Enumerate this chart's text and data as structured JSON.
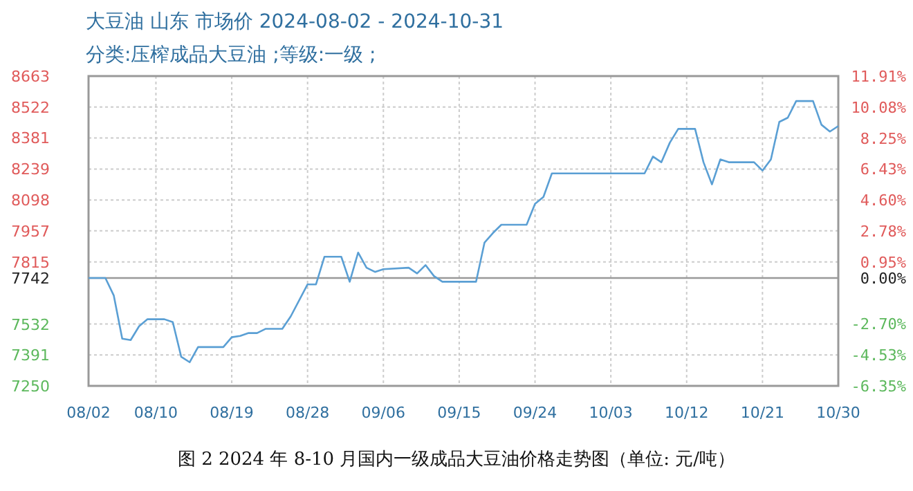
{
  "chart_data": {
    "type": "line",
    "title": "大豆油 山东 市场价 2024-08-02 - 2024-10-31",
    "subtitle": "分类:压榨成品大豆油 ;等级:一级 ;",
    "annotations": [
      "图 2  2024 年 8-10 月国内一级成品大豆油价格走势图（单位: 元/吨）"
    ],
    "x": [
      "2024-08-02",
      "2024-08-04",
      "2024-08-05",
      "2024-08-06",
      "2024-08-07",
      "2024-08-08",
      "2024-08-09",
      "2024-08-11",
      "2024-08-12",
      "2024-08-13",
      "2024-08-14",
      "2024-08-15",
      "2024-08-18",
      "2024-08-19",
      "2024-08-20",
      "2024-08-21",
      "2024-08-22",
      "2024-08-23",
      "2024-08-25",
      "2024-08-26",
      "2024-08-28",
      "2024-08-29",
      "2024-08-30",
      "2024-09-01",
      "2024-09-02",
      "2024-09-03",
      "2024-09-04",
      "2024-09-05",
      "2024-09-06",
      "2024-09-09",
      "2024-09-10",
      "2024-09-11",
      "2024-09-12",
      "2024-09-13",
      "2024-09-17",
      "2024-09-18",
      "2024-09-19",
      "2024-09-20",
      "2024-09-23",
      "2024-09-24",
      "2024-09-25",
      "2024-09-26",
      "2024-10-07",
      "2024-10-08",
      "2024-10-09",
      "2024-10-10",
      "2024-10-11",
      "2024-10-13",
      "2024-10-14",
      "2024-10-15",
      "2024-10-16",
      "2024-10-17",
      "2024-10-20",
      "2024-10-21",
      "2024-10-22",
      "2024-10-23",
      "2024-10-24",
      "2024-10-25",
      "2024-10-27",
      "2024-10-28",
      "2024-10-29",
      "2024-10-30"
    ],
    "series": [
      {
        "color": "#5a9fd4",
        "values": [
          7742,
          7742,
          7662,
          7465,
          7459,
          7522,
          7554,
          7554,
          7541,
          7383,
          7358,
          7427,
          7427,
          7472,
          7478,
          7491,
          7491,
          7510,
          7510,
          7567,
          7713,
          7713,
          7839,
          7839,
          7725,
          7858,
          7789,
          7770,
          7782,
          7789,
          7763,
          7801,
          7751,
          7725,
          7725,
          7903,
          7947,
          7985,
          7985,
          8080,
          8112,
          8219,
          8219,
          8296,
          8270,
          8359,
          8422,
          8422,
          8270,
          8169,
          8283,
          8270,
          8270,
          8232,
          8283,
          8454,
          8473,
          8549,
          8549,
          8441,
          8410,
          8435
        ]
      }
    ],
    "xlim": [
      "2024-08-02",
      "2024-10-30"
    ],
    "xticks": [
      {
        "value": "2024-08-02",
        "label": "08/02"
      },
      {
        "value": "2024-08-10",
        "label": "08/10"
      },
      {
        "value": "2024-08-19",
        "label": "08/19"
      },
      {
        "value": "2024-08-28",
        "label": "08/28"
      },
      {
        "value": "2024-09-06",
        "label": "09/06"
      },
      {
        "value": "2024-09-15",
        "label": "09/15"
      },
      {
        "value": "2024-09-24",
        "label": "09/24"
      },
      {
        "value": "2024-10-03",
        "label": "10/03"
      },
      {
        "value": "2024-10-12",
        "label": "10/12"
      },
      {
        "value": "2024-10-21",
        "label": "10/21"
      },
      {
        "value": "2024-10-30",
        "label": "10/30"
      }
    ],
    "ylim": [
      7250,
      8663
    ],
    "yticks": [
      8663,
      8522,
      8381,
      8239,
      8098,
      7957,
      7815,
      7742,
      7532,
      7391,
      7250
    ],
    "y2lim": [
      -6.35,
      11.91
    ],
    "y2ticks": [
      {
        "value": 11.91,
        "label": "11.91%"
      },
      {
        "value": 10.08,
        "label": "10.08%"
      },
      {
        "value": 8.25,
        "label": "8.25%"
      },
      {
        "value": 6.43,
        "label": "6.43%"
      },
      {
        "value": 4.6,
        "label": "4.60%"
      },
      {
        "value": 2.78,
        "label": "2.78%"
      },
      {
        "value": 0.95,
        "label": "0.95%"
      },
      {
        "value": 0,
        "label": "0.00%"
      },
      {
        "value": -2.7,
        "label": "-2.70%"
      },
      {
        "value": -4.53,
        "label": "-4.53%"
      },
      {
        "value": -6.35,
        "label": "-6.35%"
      }
    ],
    "ref_lines": [
      {
        "axis": "y",
        "value": 7742,
        "color": "#999999"
      }
    ],
    "grid": true,
    "marker": "none",
    "line_style": "solid"
  }
}
